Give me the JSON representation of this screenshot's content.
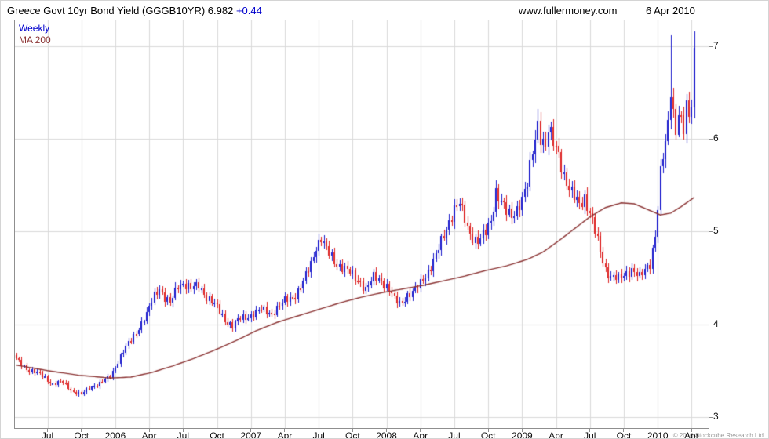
{
  "header": {
    "title": "Greece Govt 10yr Bond Yield (GGGB10YR)",
    "last_price": "6.982",
    "change": "+0.44",
    "website": "www.fullermoney.com",
    "date": "6 Apr 2010"
  },
  "legend": {
    "timeframe": "Weekly",
    "ma": "MA 200"
  },
  "footer": {
    "copyright": "© 2010 Stockcube Research Ltd"
  },
  "chart_data": {
    "type": "candlestick",
    "title": "Greece Govt 10yr Bond Yield (GGGB10YR)",
    "timeframe": "Weekly",
    "overlay": "MA 200",
    "last_close": 6.982,
    "change": 0.44,
    "grid": true,
    "legend_position": "top-left",
    "ylim": [
      2.88,
      7.28
    ],
    "yticks": [
      3,
      4,
      5,
      6,
      7
    ],
    "x_domain_weeks": 266,
    "num_candles": 261,
    "series": [
      {
        "name": "GGGB10YR weekly OHLC",
        "style": "candles",
        "up_color": "#1a1acc",
        "down_color": "#dd2222"
      },
      {
        "name": "MA 200",
        "style": "line",
        "color": "#8b3333"
      }
    ],
    "xticks": [
      {
        "label": "Jul",
        "week": 12
      },
      {
        "label": "Oct",
        "week": 25
      },
      {
        "label": "2006",
        "week": 38
      },
      {
        "label": "Apr",
        "week": 51
      },
      {
        "label": "Jul",
        "week": 64
      },
      {
        "label": "Oct",
        "week": 77
      },
      {
        "label": "2007",
        "week": 90
      },
      {
        "label": "Apr",
        "week": 103
      },
      {
        "label": "Jul",
        "week": 116
      },
      {
        "label": "Oct",
        "week": 129
      },
      {
        "label": "2008",
        "week": 142
      },
      {
        "label": "Apr",
        "week": 155
      },
      {
        "label": "Jul",
        "week": 168
      },
      {
        "label": "Oct",
        "week": 181
      },
      {
        "label": "2009",
        "week": 194
      },
      {
        "label": "Apr",
        "week": 207
      },
      {
        "label": "Jul",
        "week": 220
      },
      {
        "label": "Oct",
        "week": 233
      },
      {
        "label": "2010",
        "week": 246
      },
      {
        "label": "Apr",
        "week": 259
      }
    ],
    "price_path_anchors": [
      [
        0,
        3.62
      ],
      [
        5,
        3.5
      ],
      [
        10,
        3.45
      ],
      [
        14,
        3.35
      ],
      [
        18,
        3.38
      ],
      [
        22,
        3.27
      ],
      [
        25,
        3.24
      ],
      [
        28,
        3.32
      ],
      [
        32,
        3.36
      ],
      [
        36,
        3.44
      ],
      [
        38,
        3.55
      ],
      [
        42,
        3.75
      ],
      [
        46,
        3.92
      ],
      [
        50,
        4.1
      ],
      [
        53,
        4.32
      ],
      [
        55,
        4.4
      ],
      [
        57,
        4.28
      ],
      [
        59,
        4.22
      ],
      [
        62,
        4.42
      ],
      [
        64,
        4.45
      ],
      [
        67,
        4.38
      ],
      [
        70,
        4.42
      ],
      [
        73,
        4.3
      ],
      [
        77,
        4.18
      ],
      [
        80,
        4.05
      ],
      [
        83,
        3.98
      ],
      [
        86,
        4.06
      ],
      [
        90,
        4.1
      ],
      [
        94,
        4.16
      ],
      [
        98,
        4.12
      ],
      [
        103,
        4.25
      ],
      [
        107,
        4.32
      ],
      [
        110,
        4.45
      ],
      [
        113,
        4.65
      ],
      [
        115,
        4.85
      ],
      [
        117,
        4.93
      ],
      [
        119,
        4.8
      ],
      [
        122,
        4.68
      ],
      [
        126,
        4.6
      ],
      [
        129,
        4.52
      ],
      [
        132,
        4.46
      ],
      [
        134,
        4.38
      ],
      [
        137,
        4.5
      ],
      [
        140,
        4.48
      ],
      [
        143,
        4.38
      ],
      [
        145,
        4.26
      ],
      [
        147,
        4.22
      ],
      [
        150,
        4.32
      ],
      [
        153,
        4.36
      ],
      [
        155,
        4.44
      ],
      [
        158,
        4.58
      ],
      [
        161,
        4.74
      ],
      [
        164,
        4.95
      ],
      [
        166,
        5.12
      ],
      [
        168,
        5.26
      ],
      [
        170,
        5.3
      ],
      [
        172,
        5.12
      ],
      [
        174,
        4.98
      ],
      [
        177,
        4.9
      ],
      [
        180,
        4.98
      ],
      [
        182,
        5.12
      ],
      [
        184,
        5.45
      ],
      [
        186,
        5.32
      ],
      [
        188,
        5.2
      ],
      [
        190,
        5.16
      ],
      [
        192,
        5.26
      ],
      [
        194,
        5.36
      ],
      [
        196,
        5.5
      ],
      [
        198,
        5.85
      ],
      [
        200,
        6.18
      ],
      [
        201,
        6.05
      ],
      [
        203,
        5.92
      ],
      [
        204,
        6.08
      ],
      [
        206,
        5.95
      ],
      [
        208,
        5.85
      ],
      [
        210,
        5.62
      ],
      [
        212,
        5.45
      ],
      [
        214,
        5.36
      ],
      [
        216,
        5.3
      ],
      [
        218,
        5.38
      ],
      [
        220,
        5.2
      ],
      [
        222,
        5.0
      ],
      [
        224,
        4.78
      ],
      [
        226,
        4.6
      ],
      [
        228,
        4.52
      ],
      [
        231,
        4.48
      ],
      [
        234,
        4.56
      ],
      [
        236,
        4.6
      ],
      [
        239,
        4.5
      ],
      [
        241,
        4.58
      ],
      [
        243,
        4.66
      ],
      [
        245,
        4.98
      ],
      [
        246,
        5.25
      ],
      [
        247,
        5.62
      ],
      [
        248,
        5.8
      ],
      [
        249,
        5.92
      ],
      [
        250,
        6.18
      ],
      [
        251,
        6.55
      ],
      [
        252,
        6.3
      ],
      [
        253,
        6.12
      ],
      [
        254,
        6.28
      ],
      [
        255,
        6.18
      ],
      [
        256,
        6.08
      ],
      [
        257,
        6.32
      ],
      [
        258,
        6.22
      ],
      [
        259,
        6.4
      ],
      [
        260,
        6.982
      ]
    ],
    "ma_path_anchors": [
      [
        0,
        3.56
      ],
      [
        12,
        3.5
      ],
      [
        24,
        3.45
      ],
      [
        36,
        3.42
      ],
      [
        44,
        3.43
      ],
      [
        52,
        3.48
      ],
      [
        60,
        3.55
      ],
      [
        68,
        3.63
      ],
      [
        76,
        3.72
      ],
      [
        84,
        3.82
      ],
      [
        92,
        3.93
      ],
      [
        100,
        4.02
      ],
      [
        108,
        4.09
      ],
      [
        116,
        4.16
      ],
      [
        124,
        4.23
      ],
      [
        132,
        4.29
      ],
      [
        140,
        4.34
      ],
      [
        148,
        4.38
      ],
      [
        156,
        4.42
      ],
      [
        164,
        4.47
      ],
      [
        172,
        4.52
      ],
      [
        180,
        4.58
      ],
      [
        188,
        4.63
      ],
      [
        196,
        4.7
      ],
      [
        202,
        4.78
      ],
      [
        208,
        4.9
      ],
      [
        214,
        5.03
      ],
      [
        220,
        5.16
      ],
      [
        226,
        5.26
      ],
      [
        232,
        5.31
      ],
      [
        237,
        5.3
      ],
      [
        242,
        5.24
      ],
      [
        247,
        5.18
      ],
      [
        251,
        5.2
      ],
      [
        255,
        5.27
      ],
      [
        260,
        5.37
      ]
    ],
    "wick_high_overrides": {
      "200": 6.32,
      "251": 7.12,
      "260": 7.16
    },
    "wick_low_overrides": {
      "254": 6.02
    },
    "close_overrides": {
      "260": 6.982
    },
    "colors": {
      "up": "#1a1acc",
      "down": "#dd2222",
      "ma": "#8b3333",
      "grid": "#d9d9d9",
      "frame": "#8f8f8f",
      "accent_blue": "#0000cc",
      "copyright": "#9a9a9a"
    }
  }
}
